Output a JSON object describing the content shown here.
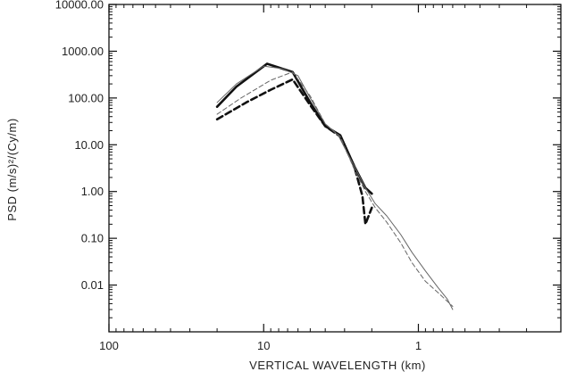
{
  "chart_data": {
    "type": "line",
    "title": "",
    "xlabel": "VERTICAL WAVELENGTH (km)",
    "ylabel": "PSD (m/s)²/(Cy/m)",
    "x_scale": "log",
    "y_scale": "log",
    "x_reversed": true,
    "xlim": [
      100,
      0.12
    ],
    "ylim": [
      0.001,
      10000
    ],
    "x_ticks": [
      {
        "value": 100,
        "label": "100"
      },
      {
        "value": 10,
        "label": "10"
      },
      {
        "value": 1,
        "label": "1"
      }
    ],
    "y_ticks": [
      {
        "value": 10000,
        "label": "10000.00"
      },
      {
        "value": 1000,
        "label": "1000.00"
      },
      {
        "value": 100,
        "label": "100.00"
      },
      {
        "value": 10,
        "label": "10.00"
      },
      {
        "value": 1,
        "label": "1.00"
      },
      {
        "value": 0.1,
        "label": "0.10"
      },
      {
        "value": 0.01,
        "label": "0.01"
      }
    ],
    "grid": false,
    "legend": "none",
    "series": [
      {
        "style": "thick-solid",
        "color": "#111111",
        "points": [
          [
            20,
            65
          ],
          [
            15,
            175
          ],
          [
            9.5,
            540
          ],
          [
            6.5,
            360
          ],
          [
            5,
            80
          ],
          [
            4,
            25
          ],
          [
            3.2,
            16
          ],
          [
            2.6,
            3.5
          ],
          [
            2.2,
            1.2
          ],
          [
            2.0,
            0.9
          ]
        ]
      },
      {
        "style": "thick-dashed",
        "color": "#111111",
        "points": [
          [
            20,
            35
          ],
          [
            13,
            80
          ],
          [
            9,
            150
          ],
          [
            6.5,
            250
          ],
          [
            5,
            70
          ],
          [
            4,
            25
          ],
          [
            3.2,
            15
          ],
          [
            2.6,
            3.5
          ],
          [
            2.3,
            0.8
          ],
          [
            2.2,
            0.2
          ],
          [
            2.0,
            0.45
          ]
        ]
      },
      {
        "style": "thin-solid",
        "color": "#666666",
        "points": [
          [
            20,
            80
          ],
          [
            15,
            200
          ],
          [
            10,
            480
          ],
          [
            7.5,
            420
          ],
          [
            6,
            300
          ],
          [
            5,
            100
          ],
          [
            4,
            28
          ],
          [
            3.3,
            16
          ],
          [
            2.6,
            3.5
          ],
          [
            2.2,
            1.2
          ],
          [
            1.9,
            0.55
          ],
          [
            1.6,
            0.3
          ],
          [
            1.3,
            0.12
          ],
          [
            1.1,
            0.05
          ],
          [
            0.9,
            0.02
          ],
          [
            0.75,
            0.009
          ],
          [
            0.65,
            0.005
          ],
          [
            0.6,
            0.003
          ]
        ]
      },
      {
        "style": "thin-dashed",
        "color": "#666666",
        "points": [
          [
            20,
            45
          ],
          [
            14,
            100
          ],
          [
            9,
            240
          ],
          [
            6.5,
            360
          ],
          [
            5,
            110
          ],
          [
            4,
            28
          ],
          [
            3.2,
            15
          ],
          [
            2.6,
            3.0
          ],
          [
            2.2,
            1.0
          ],
          [
            1.9,
            0.45
          ],
          [
            1.6,
            0.22
          ],
          [
            1.3,
            0.08
          ],
          [
            1.1,
            0.03
          ],
          [
            0.9,
            0.012
          ],
          [
            0.75,
            0.007
          ],
          [
            0.6,
            0.0035
          ]
        ]
      }
    ]
  }
}
